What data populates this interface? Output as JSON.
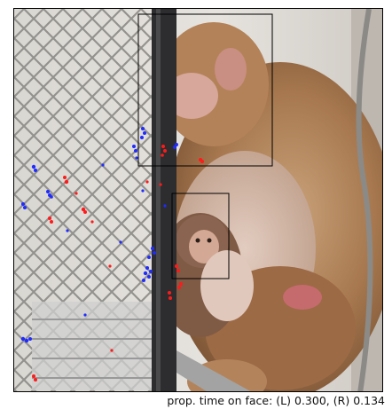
{
  "caption": {
    "label": "prop. time on face:",
    "left_key": "(L)",
    "left_value": "0.300",
    "right_key": "(R)",
    "right_value": "0.134",
    "separator": ","
  },
  "scene": {
    "subjects": [
      "adult-monkey",
      "infant-monkey",
      "chain-link-fence",
      "cage-bar"
    ],
    "face_boxes": [
      "adult-face-box",
      "infant-face-box"
    ],
    "gaze_colors": {
      "left": "#1f2bff",
      "right": "#ff1a1a"
    }
  }
}
